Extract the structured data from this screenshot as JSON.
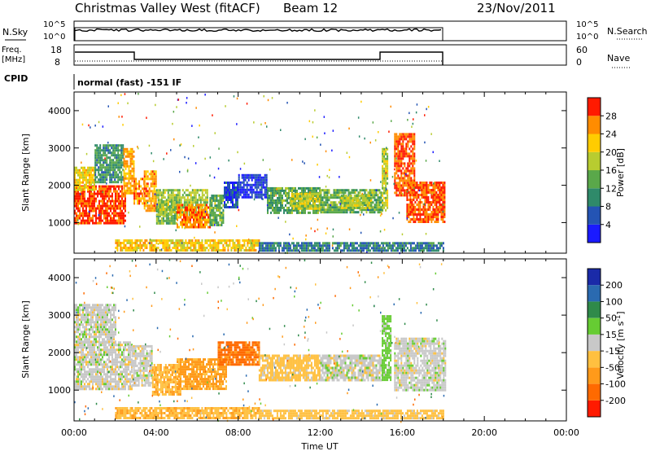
{
  "header": {
    "title": "Christmas Valley West (fitACF)",
    "beam": "Beam 12",
    "date": "23/Nov/2011"
  },
  "side_labels": {
    "nsky": "N.Sky",
    "freq_line1": "Freq.",
    "freq_line2": "[MHz]",
    "cpid": "CPID",
    "nsearch": "N.Search",
    "nave": "Nave"
  },
  "cpid_text": "normal (fast) -151 IF",
  "nsky_panel": {
    "tick_top": "10^5",
    "tick_bottom": "10^0",
    "right_tick_top": "10^5",
    "right_tick_bottom": "10^0"
  },
  "freq_panel": {
    "ticks_left": [
      "18",
      "8"
    ],
    "ticks_right": [
      "60",
      "0"
    ]
  },
  "chart_data": [
    {
      "type": "heatmap",
      "name": "power",
      "xlabel": "",
      "ylabel": "Slant Range [km]",
      "xlim": [
        0,
        24
      ],
      "ylim": [
        180,
        4500
      ],
      "y_ticks": [
        {
          "value": 1000,
          "label": "1000"
        },
        {
          "value": 2000,
          "label": "2000"
        },
        {
          "value": 3000,
          "label": "3000"
        },
        {
          "value": 4000,
          "label": "4000"
        }
      ],
      "colorbar": {
        "label": "Power [dB]",
        "range": [
          0,
          32
        ],
        "ticks": [
          4,
          8,
          12,
          16,
          20,
          24,
          28
        ],
        "tick_labels": [
          "4",
          "8",
          "12",
          "16",
          "20",
          "24",
          "28"
        ],
        "colors": [
          "#1a1aff",
          "#2454b4",
          "#2f8a6a",
          "#5aa84a",
          "#b8cc30",
          "#ffcc00",
          "#ff8c00",
          "#ff1a00"
        ]
      },
      "regions": [
        {
          "t0": 0.0,
          "t1": 2.5,
          "r0": 1000,
          "r1": 2000,
          "level": 29
        },
        {
          "t0": 0.0,
          "t1": 1.0,
          "r0": 1900,
          "r1": 2500,
          "level": 21
        },
        {
          "t0": 1.0,
          "t1": 2.4,
          "r0": 2100,
          "r1": 3100,
          "level": 11
        },
        {
          "t0": 2.4,
          "t1": 2.9,
          "r0": 1800,
          "r1": 3000,
          "level": 24
        },
        {
          "t0": 2.9,
          "t1": 3.4,
          "r0": 1500,
          "r1": 2200,
          "level": 26
        },
        {
          "t0": 3.4,
          "t1": 4.0,
          "r0": 1300,
          "r1": 2400,
          "level": 25
        },
        {
          "t0": 4.0,
          "t1": 5.0,
          "r0": 1000,
          "r1": 1600,
          "level": 14
        },
        {
          "t0": 4.0,
          "t1": 6.5,
          "r0": 1200,
          "r1": 1900,
          "level": 17
        },
        {
          "t0": 5.0,
          "t1": 6.6,
          "r0": 850,
          "r1": 1500,
          "level": 26
        },
        {
          "t0": 6.6,
          "t1": 7.3,
          "r0": 950,
          "r1": 1750,
          "level": 14
        },
        {
          "t0": 7.3,
          "t1": 8.0,
          "r0": 1400,
          "r1": 2100,
          "level": 5
        },
        {
          "t0": 8.0,
          "t1": 9.4,
          "r0": 1650,
          "r1": 2300,
          "level": 4
        },
        {
          "t0": 9.4,
          "t1": 12.0,
          "r0": 1250,
          "r1": 1950,
          "level": 13
        },
        {
          "t0": 10.5,
          "t1": 12.0,
          "r0": 1350,
          "r1": 1800,
          "level": 19
        },
        {
          "t0": 12.0,
          "t1": 15.0,
          "r0": 1250,
          "r1": 1900,
          "level": 14
        },
        {
          "t0": 13.0,
          "t1": 14.5,
          "r0": 1400,
          "r1": 1750,
          "level": 18
        },
        {
          "t0": 15.0,
          "t1": 15.3,
          "r0": 1300,
          "r1": 3000,
          "level": 18
        },
        {
          "t0": 15.6,
          "t1": 16.6,
          "r0": 1700,
          "r1": 3400,
          "level": 28
        },
        {
          "t0": 16.2,
          "t1": 18.1,
          "r0": 1000,
          "r1": 2100,
          "level": 28
        },
        {
          "t0": 2.0,
          "t1": 9.0,
          "r0": 250,
          "r1": 550,
          "level": 22
        },
        {
          "t0": 9.0,
          "t1": 18.0,
          "r0": 250,
          "r1": 480,
          "level": 9
        }
      ]
    },
    {
      "type": "heatmap",
      "name": "velocity",
      "xlabel": "Time UT",
      "ylabel": "Slant Range [km]",
      "xlim": [
        0,
        24
      ],
      "ylim": [
        180,
        4500
      ],
      "x_ticks": [
        {
          "value": 0,
          "label": "00:00"
        },
        {
          "value": 4,
          "label": "04:00"
        },
        {
          "value": 8,
          "label": "08:00"
        },
        {
          "value": 12,
          "label": "12:00"
        },
        {
          "value": 16,
          "label": "16:00"
        },
        {
          "value": 20,
          "label": "20:00"
        },
        {
          "value": 24,
          "label": "00:00"
        }
      ],
      "y_ticks": [
        {
          "value": 1000,
          "label": "1000"
        },
        {
          "value": 2000,
          "label": "2000"
        },
        {
          "value": 3000,
          "label": "3000"
        },
        {
          "value": 4000,
          "label": "4000"
        }
      ],
      "colorbar": {
        "label": "Velocity [m s^-1]",
        "ticks": [
          -200,
          -100,
          -50,
          -15,
          15,
          50,
          100,
          200
        ],
        "tick_labels": [
          "-200",
          "-100",
          "-50",
          "-15",
          "15",
          "50",
          "100",
          "200"
        ],
        "colors": [
          "#ff1a00",
          "#ff6a00",
          "#ff9a1a",
          "#ffc040",
          "#c8c8c8",
          "#66cc33",
          "#2f8a4a",
          "#2a6ab0",
          "#1a2aa8"
        ]
      },
      "regions": [
        {
          "t0": 0.0,
          "t1": 2.8,
          "r0": 1000,
          "r1": 2300,
          "level": 0
        },
        {
          "t0": 0.0,
          "t1": 2.0,
          "r0": 2300,
          "r1": 3300,
          "level": 0
        },
        {
          "t0": 2.8,
          "t1": 3.8,
          "r0": 1100,
          "r1": 2200,
          "level": 0
        },
        {
          "t0": 3.8,
          "t1": 5.2,
          "r0": 900,
          "r1": 1700,
          "level": -45
        },
        {
          "t0": 5.0,
          "t1": 7.4,
          "r0": 1050,
          "r1": 1850,
          "level": -60
        },
        {
          "t0": 7.0,
          "t1": 9.0,
          "r0": 1650,
          "r1": 2300,
          "level": -110
        },
        {
          "t0": 9.0,
          "t1": 12.0,
          "r0": 1250,
          "r1": 1950,
          "level": -30
        },
        {
          "t0": 12.0,
          "t1": 15.0,
          "r0": 1250,
          "r1": 1950,
          "level": 0
        },
        {
          "t0": 15.0,
          "t1": 15.4,
          "r0": 1300,
          "r1": 3000,
          "level": 25
        },
        {
          "t0": 15.6,
          "t1": 18.1,
          "r0": 1000,
          "r1": 2400,
          "level": 0
        },
        {
          "t0": 2.0,
          "t1": 9.0,
          "r0": 250,
          "r1": 550,
          "level": -40
        },
        {
          "t0": 9.0,
          "t1": 18.0,
          "r0": 250,
          "r1": 480,
          "level": -30
        }
      ]
    }
  ]
}
